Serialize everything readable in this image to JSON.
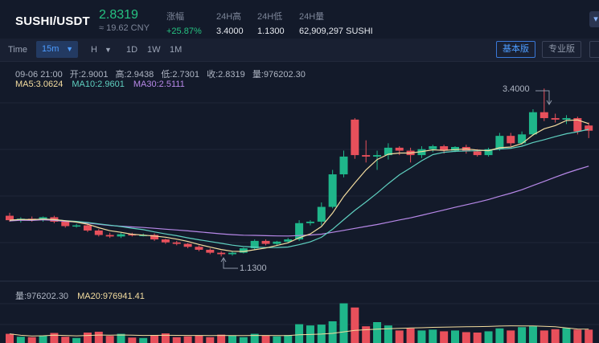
{
  "header": {
    "pair": "SUSHI/USDT",
    "price": "2.8319",
    "price_cny": "≈ 19.62 CNY",
    "change_label": "涨幅",
    "change_value": "+25.87%",
    "high_label": "24H高",
    "high_value": "3.4000",
    "low_label": "24H低",
    "low_value": "1.1300",
    "volume_label": "24H量",
    "volume_value": "62,909,297 SUSHI"
  },
  "toolbar": {
    "time_label": "Time",
    "interval": "15m",
    "intervals": [
      "H",
      "1D",
      "1W",
      "1M"
    ],
    "basic_label": "基本版",
    "pro_label": "专业版"
  },
  "ohlc": {
    "date": "09-06 21:00",
    "open": "开:2.9001",
    "high": "高:2.9438",
    "low": "低:2.7301",
    "close": "收:2.8319",
    "volume": "量:976202.30"
  },
  "ma": {
    "ma5": "MA5:3.0624",
    "ma10": "MA10:2.9601",
    "ma30": "MA30:2.5111",
    "ma5_color": "#f5dea0",
    "ma10_color": "#5fd0c0",
    "ma30_color": "#b788e8"
  },
  "volume_panel": {
    "volume": "量:976202.30",
    "ma20": "MA20:976941.41"
  },
  "annotations": {
    "high": "3.4000",
    "low": "1.1300"
  },
  "colors": {
    "up": "#1fb68a",
    "down": "#e8505b",
    "accent": "#4d9cff"
  },
  "candles": [
    [
      1.68,
      1.72,
      1.62,
      1.6
    ],
    [
      1.62,
      1.66,
      1.64,
      1.59
    ],
    [
      1.64,
      1.67,
      1.62,
      1.6
    ],
    [
      1.62,
      1.67,
      1.66,
      1.6
    ],
    [
      1.66,
      1.68,
      1.6,
      1.58
    ],
    [
      1.6,
      1.61,
      1.54,
      1.52
    ],
    [
      1.54,
      1.57,
      1.55,
      1.52
    ],
    [
      1.55,
      1.57,
      1.48,
      1.46
    ],
    [
      1.48,
      1.5,
      1.42,
      1.4
    ],
    [
      1.42,
      1.45,
      1.4,
      1.38
    ],
    [
      1.4,
      1.45,
      1.43,
      1.38
    ],
    [
      1.43,
      1.45,
      1.42,
      1.4
    ],
    [
      1.42,
      1.44,
      1.42,
      1.4
    ],
    [
      1.42,
      1.44,
      1.36,
      1.34
    ],
    [
      1.36,
      1.37,
      1.32,
      1.3
    ],
    [
      1.32,
      1.34,
      1.3,
      1.28
    ],
    [
      1.3,
      1.31,
      1.26,
      1.24
    ],
    [
      1.26,
      1.28,
      1.22,
      1.2
    ],
    [
      1.22,
      1.24,
      1.18,
      1.16
    ],
    [
      1.18,
      1.2,
      1.16,
      1.13
    ],
    [
      1.16,
      1.2,
      1.18,
      1.14
    ],
    [
      1.18,
      1.25,
      1.24,
      1.17
    ],
    [
      1.24,
      1.36,
      1.34,
      1.22
    ],
    [
      1.34,
      1.36,
      1.3,
      1.28
    ],
    [
      1.3,
      1.34,
      1.33,
      1.28
    ],
    [
      1.33,
      1.38,
      1.36,
      1.31
    ],
    [
      1.36,
      1.62,
      1.58,
      1.34
    ],
    [
      1.58,
      1.62,
      1.6,
      1.55
    ],
    [
      1.6,
      1.86,
      1.8,
      1.55
    ],
    [
      1.8,
      2.3,
      2.24,
      1.78
    ],
    [
      2.24,
      2.56,
      2.48,
      2.2
    ],
    [
      2.98,
      3.0,
      2.5,
      2.45
    ],
    [
      2.5,
      2.7,
      2.48,
      2.4
    ],
    [
      2.48,
      2.56,
      2.5,
      2.3
    ],
    [
      2.5,
      2.66,
      2.6,
      2.44
    ],
    [
      2.6,
      2.62,
      2.56,
      2.5
    ],
    [
      2.56,
      2.6,
      2.5,
      2.4
    ],
    [
      2.5,
      2.62,
      2.58,
      2.46
    ],
    [
      2.58,
      2.64,
      2.62,
      2.54
    ],
    [
      2.62,
      2.64,
      2.56,
      2.52
    ],
    [
      2.56,
      2.62,
      2.61,
      2.54
    ],
    [
      2.61,
      2.64,
      2.55,
      2.52
    ],
    [
      2.55,
      2.58,
      2.5,
      2.48
    ],
    [
      2.5,
      2.6,
      2.58,
      2.48
    ],
    [
      2.58,
      2.8,
      2.76,
      2.56
    ],
    [
      2.76,
      2.8,
      2.66,
      2.62
    ],
    [
      2.66,
      2.82,
      2.78,
      2.64
    ],
    [
      2.78,
      3.12,
      3.08,
      2.76
    ],
    [
      3.08,
      3.4,
      3.0,
      2.96
    ],
    [
      3.0,
      3.06,
      2.98,
      2.94
    ],
    [
      2.98,
      3.04,
      3.0,
      2.92
    ],
    [
      3.0,
      3.02,
      2.82,
      2.78
    ],
    [
      2.9,
      2.94,
      2.83,
      2.73
    ]
  ],
  "volumes": [
    22,
    15,
    14,
    18,
    24,
    15,
    12,
    25,
    27,
    17,
    22,
    13,
    12,
    19,
    23,
    14,
    16,
    18,
    14,
    20,
    18,
    14,
    22,
    18,
    16,
    19,
    45,
    42,
    44,
    52,
    95,
    85,
    40,
    50,
    42,
    30,
    35,
    30,
    32,
    28,
    30,
    26,
    25,
    28,
    35,
    30,
    38,
    40,
    30,
    33,
    36,
    32,
    32
  ]
}
